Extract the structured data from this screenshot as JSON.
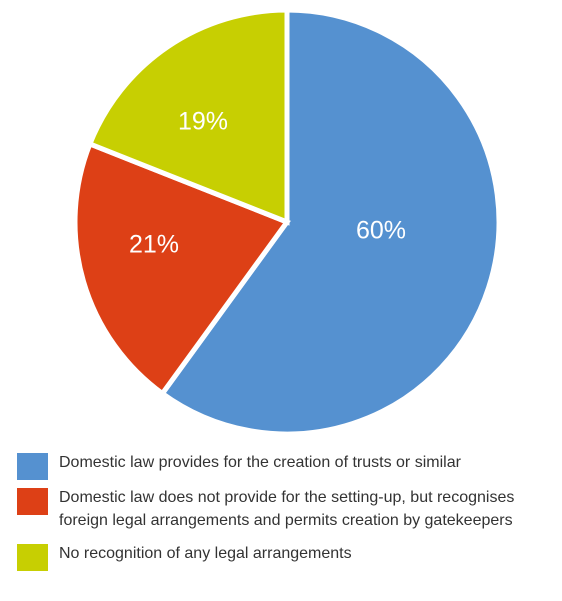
{
  "chart_data": {
    "type": "pie",
    "title": "",
    "slices": [
      {
        "label": "Domestic law provides for the creation of trusts or similar",
        "value": 60,
        "display": "60%",
        "color": "#5591d0"
      },
      {
        "label": "Domestic law does not provide for the setting-up, but recognises foreign legal arrangements and permits creation by gatekeepers",
        "value": 21,
        "display": "21%",
        "color": "#dd4016"
      },
      {
        "label": "No recognition of any legal arrangements",
        "value": 19,
        "display": "19%",
        "color": "#c7cf02"
      }
    ],
    "start": "12 o'clock",
    "direction": "clockwise",
    "legend_position": "bottom-left"
  },
  "legend": {
    "items": [
      {
        "text": "Domestic law provides for the creation of trusts or similar",
        "color": "#5591d0"
      },
      {
        "text": "Domestic law does not provide for the setting-up, but recognises foreign legal arrangements and permits creation by gatekeepers",
        "color": "#dd4016"
      },
      {
        "text": "No recognition of any legal arrangements",
        "color": "#c7cf02"
      }
    ]
  }
}
